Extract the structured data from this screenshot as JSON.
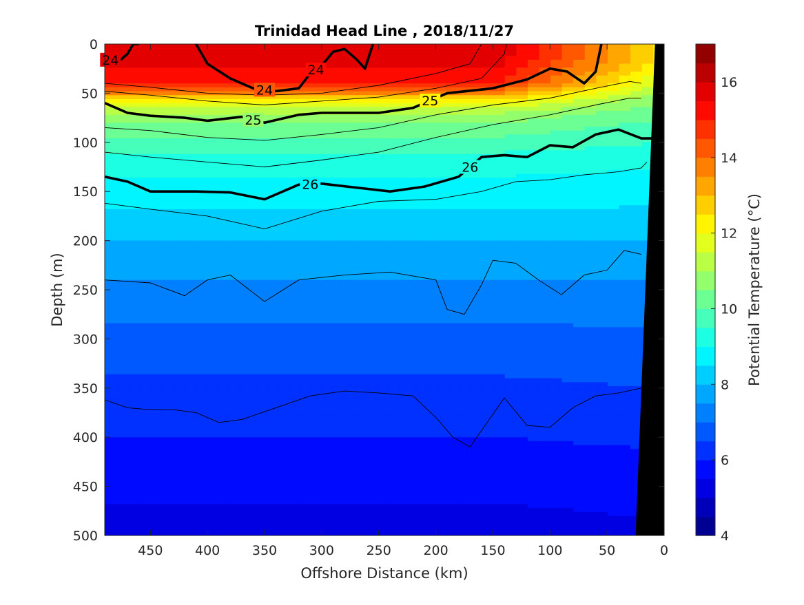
{
  "chart_data": {
    "type": "heatmap",
    "title": "Trinidad Head Line , 2018/11/27",
    "xlabel": "Offshore Distance (km)",
    "ylabel": "Depth (m)",
    "xlim": [
      490,
      0
    ],
    "ylim": [
      0,
      500
    ],
    "x_reversed": true,
    "y_reversed": true,
    "xticks": [
      "450",
      "400",
      "350",
      "300",
      "250",
      "200",
      "150",
      "100",
      "50",
      "0"
    ],
    "yticks": [
      "0",
      "50",
      "100",
      "150",
      "200",
      "250",
      "300",
      "350",
      "400",
      "450",
      "500"
    ],
    "colorbar": {
      "label": "Potential Temperature (°C)",
      "range": [
        4,
        17
      ],
      "ticks": [
        "4",
        "6",
        "8",
        "10",
        "12",
        "14",
        "16"
      ],
      "colormap": "jet",
      "levels": 26
    },
    "temperature_profile": {
      "depth_m": [
        0,
        20,
        40,
        50,
        60,
        70,
        80,
        100,
        120,
        150,
        180,
        200,
        250,
        300,
        350,
        400,
        450,
        500
      ],
      "temp_c": [
        16,
        15.6,
        15,
        13.5,
        12,
        11,
        10.5,
        9.8,
        9.2,
        8.8,
        8.3,
        8.0,
        7.4,
        6.8,
        6.4,
        6.0,
        5.6,
        5.3
      ],
      "nearshore_temp_c": [
        12.5,
        12.3,
        11.5,
        11,
        10.5,
        10.2,
        9.9,
        9.5,
        9.1,
        8.7,
        8.3,
        8.0,
        7.4,
        6.9,
        6.5,
        6.1,
        5.7,
        5.4
      ]
    },
    "density_contours": [
      {
        "label": "24",
        "points": [
          [
            490,
            12
          ],
          [
            480,
            20
          ],
          [
            470,
            10
          ],
          [
            465,
            0
          ],
          [
            460,
            0
          ]
        ]
      },
      {
        "label": "24",
        "points": [
          [
            410,
            0
          ],
          [
            400,
            20
          ],
          [
            380,
            35
          ],
          [
            360,
            45
          ],
          [
            340,
            48
          ],
          [
            320,
            45
          ],
          [
            310,
            30
          ],
          [
            300,
            22
          ],
          [
            290,
            8
          ],
          [
            280,
            5
          ],
          [
            270,
            15
          ],
          [
            262,
            25
          ],
          [
            255,
            0
          ]
        ]
      },
      {
        "label": "25",
        "points": [
          [
            490,
            60
          ],
          [
            470,
            70
          ],
          [
            450,
            73
          ],
          [
            420,
            75
          ],
          [
            400,
            78
          ],
          [
            370,
            74
          ],
          [
            350,
            80
          ],
          [
            320,
            72
          ],
          [
            300,
            70
          ],
          [
            270,
            70
          ],
          [
            250,
            70
          ],
          [
            220,
            65
          ],
          [
            190,
            50
          ],
          [
            150,
            45
          ],
          [
            120,
            36
          ],
          [
            100,
            25
          ],
          [
            85,
            28
          ],
          [
            70,
            40
          ],
          [
            60,
            28
          ],
          [
            55,
            0
          ]
        ]
      },
      {
        "label": "26",
        "points": [
          [
            490,
            135
          ],
          [
            470,
            140
          ],
          [
            450,
            150
          ],
          [
            410,
            150
          ],
          [
            380,
            151
          ],
          [
            350,
            158
          ],
          [
            320,
            143
          ],
          [
            300,
            142
          ],
          [
            270,
            146
          ],
          [
            240,
            150
          ],
          [
            210,
            145
          ],
          [
            180,
            135
          ],
          [
            160,
            115
          ],
          [
            140,
            113
          ],
          [
            120,
            115
          ],
          [
            100,
            103
          ],
          [
            80,
            105
          ],
          [
            60,
            92
          ],
          [
            40,
            87
          ],
          [
            20,
            96
          ],
          [
            10,
            96
          ]
        ]
      }
    ],
    "thin_contours": [
      [
        [
          490,
          40
        ],
        [
          450,
          44
        ],
        [
          400,
          50
        ],
        [
          350,
          52
        ],
        [
          300,
          50
        ],
        [
          250,
          42
        ],
        [
          200,
          30
        ],
        [
          170,
          20
        ],
        [
          160,
          0
        ]
      ],
      [
        [
          490,
          48
        ],
        [
          450,
          52
        ],
        [
          400,
          58
        ],
        [
          350,
          62
        ],
        [
          300,
          58
        ],
        [
          250,
          54
        ],
        [
          200,
          45
        ],
        [
          160,
          35
        ],
        [
          140,
          10
        ],
        [
          138,
          0
        ]
      ],
      [
        [
          490,
          85
        ],
        [
          450,
          88
        ],
        [
          400,
          95
        ],
        [
          350,
          98
        ],
        [
          300,
          92
        ],
        [
          250,
          85
        ],
        [
          200,
          72
        ],
        [
          150,
          62
        ],
        [
          100,
          55
        ],
        [
          60,
          45
        ],
        [
          30,
          38
        ],
        [
          20,
          40
        ]
      ],
      [
        [
          490,
          110
        ],
        [
          450,
          115
        ],
        [
          400,
          120
        ],
        [
          350,
          125
        ],
        [
          300,
          118
        ],
        [
          250,
          110
        ],
        [
          200,
          95
        ],
        [
          150,
          82
        ],
        [
          100,
          72
        ],
        [
          60,
          62
        ],
        [
          30,
          55
        ],
        [
          20,
          55
        ]
      ],
      [
        [
          490,
          162
        ],
        [
          450,
          168
        ],
        [
          400,
          175
        ],
        [
          350,
          188
        ],
        [
          300,
          170
        ],
        [
          250,
          160
        ],
        [
          200,
          158
        ],
        [
          160,
          150
        ],
        [
          130,
          140
        ],
        [
          100,
          138
        ],
        [
          70,
          133
        ],
        [
          40,
          130
        ],
        [
          20,
          126
        ],
        [
          15,
          120
        ]
      ],
      [
        [
          490,
          240
        ],
        [
          450,
          243
        ],
        [
          420,
          256
        ],
        [
          400,
          240
        ],
        [
          380,
          235
        ],
        [
          350,
          262
        ],
        [
          320,
          240
        ],
        [
          280,
          235
        ],
        [
          240,
          232
        ],
        [
          200,
          240
        ],
        [
          190,
          270
        ],
        [
          175,
          275
        ],
        [
          160,
          245
        ],
        [
          150,
          220
        ],
        [
          130,
          223
        ],
        [
          110,
          240
        ],
        [
          90,
          255
        ],
        [
          70,
          235
        ],
        [
          50,
          230
        ],
        [
          35,
          210
        ],
        [
          20,
          214
        ]
      ],
      [
        [
          490,
          362
        ],
        [
          470,
          370
        ],
        [
          450,
          372
        ],
        [
          430,
          372
        ],
        [
          410,
          375
        ],
        [
          390,
          385
        ],
        [
          370,
          382
        ],
        [
          340,
          370
        ],
        [
          310,
          358
        ],
        [
          280,
          353
        ],
        [
          250,
          355
        ],
        [
          220,
          358
        ],
        [
          200,
          380
        ],
        [
          185,
          400
        ],
        [
          170,
          410
        ],
        [
          155,
          385
        ],
        [
          140,
          360
        ],
        [
          120,
          388
        ],
        [
          100,
          390
        ],
        [
          80,
          370
        ],
        [
          60,
          358
        ],
        [
          40,
          355
        ],
        [
          20,
          350
        ]
      ]
    ],
    "bathymetry": {
      "color": "#000000",
      "points": [
        [
          8,
          0
        ],
        [
          25,
          500
        ],
        [
          0,
          500
        ],
        [
          0,
          0
        ]
      ]
    }
  }
}
